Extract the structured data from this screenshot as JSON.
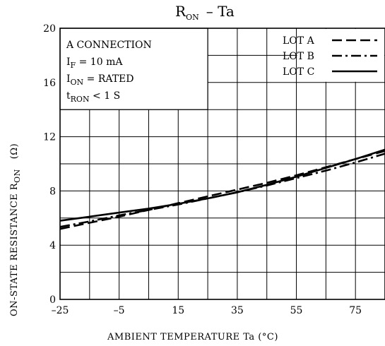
{
  "chart_data": {
    "type": "line",
    "title_main": "R",
    "title_sub": "ON",
    "title_rest": "– Ta",
    "xlabel": "AMBIENT TEMPERATURE   Ta   (°C)",
    "ylabel_main": "ON-STATE RESISTANCE   R",
    "ylabel_sub": "ON",
    "ylabel_unit": "(Ω)",
    "xlim": [
      -25,
      85
    ],
    "ylim": [
      0,
      20
    ],
    "xticks": [
      -25,
      -15,
      -5,
      5,
      15,
      25,
      35,
      45,
      55,
      65,
      75,
      85
    ],
    "xtick_labels": [
      "–25",
      "–5",
      "15",
      "35",
      "55",
      "75"
    ],
    "xtick_label_values": [
      -25,
      -5,
      15,
      35,
      55,
      75
    ],
    "yticks": [
      0,
      2,
      4,
      6,
      8,
      10,
      12,
      14,
      16,
      18,
      20
    ],
    "ytick_labels": [
      "0",
      "4",
      "8",
      "12",
      "16",
      "20"
    ],
    "ytick_label_values": [
      0,
      4,
      8,
      12,
      16,
      20
    ],
    "grid": true,
    "legend_position": "top-right",
    "conditions": [
      {
        "main": "A CONNECTION",
        "sub": "",
        "rest": ""
      },
      {
        "main": "I",
        "sub": "F",
        "rest": " = 10 mA"
      },
      {
        "main": "I",
        "sub": "ON",
        "rest": " = RATED"
      },
      {
        "main": "t",
        "sub": "RON",
        "rest": " < 1 S"
      }
    ],
    "series": [
      {
        "name": "LOT A",
        "style": "dashed",
        "x": [
          -25,
          -15,
          -5,
          5,
          15,
          25,
          35,
          45,
          55,
          65,
          75,
          85
        ],
        "y": [
          5.2,
          5.65,
          6.1,
          6.6,
          7.1,
          7.6,
          8.1,
          8.6,
          9.15,
          9.75,
          10.35,
          10.95
        ]
      },
      {
        "name": "LOT B",
        "style": "dashdot",
        "x": [
          -25,
          -15,
          -5,
          5,
          15,
          25,
          35,
          45,
          55,
          65,
          75,
          85
        ],
        "y": [
          5.35,
          5.75,
          6.2,
          6.6,
          7.0,
          7.45,
          7.9,
          8.4,
          8.95,
          9.5,
          10.1,
          10.75
        ]
      },
      {
        "name": "LOT C",
        "style": "solid",
        "x": [
          -25,
          -15,
          -5,
          5,
          15,
          25,
          35,
          45,
          55,
          65,
          75,
          85
        ],
        "y": [
          5.8,
          6.1,
          6.4,
          6.7,
          7.05,
          7.45,
          7.9,
          8.45,
          9.05,
          9.7,
          10.35,
          11.05
        ]
      }
    ]
  }
}
